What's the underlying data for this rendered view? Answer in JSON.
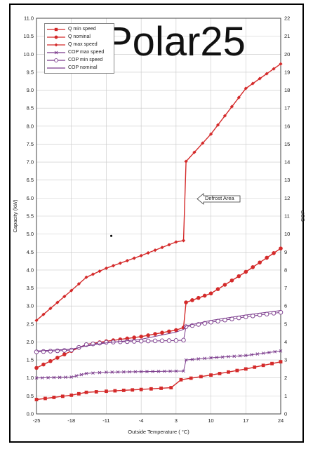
{
  "brand_text": "Polar25",
  "chart_data": {
    "type": "line",
    "x_axis": {
      "label": "Outside Temperature ( °C)",
      "ticks": [
        -25,
        -18,
        -11,
        -4,
        3,
        10,
        17,
        24
      ],
      "range": [
        -25,
        24
      ]
    },
    "y_axis_left": {
      "label": "Capacity (kW)",
      "range": [
        0,
        11
      ],
      "step": 0.5,
      "ticks": [
        "0.0",
        "0.5",
        "1.0",
        "1.5",
        "2.0",
        "2.5",
        "3.0",
        "3.5",
        "4.0",
        "4.5",
        "5.0",
        "5.5",
        "6.0",
        "6.5",
        "7.0",
        "7.5",
        "8.0",
        "8.5",
        "9.0",
        "9.5",
        "10.0",
        "10.5",
        "11.0"
      ]
    },
    "y_axis_right": {
      "label": "COP",
      "range": [
        0,
        22
      ],
      "step": 1,
      "ticks": [
        "0",
        "1",
        "2",
        "3",
        "4",
        "5",
        "6",
        "7",
        "8",
        "9",
        "10",
        "11",
        "12",
        "13",
        "14",
        "15",
        "16",
        "17",
        "18",
        "19",
        "20",
        "21",
        "22"
      ]
    },
    "grid": true,
    "legend_position": "top-left",
    "series": [
      {
        "name": "Q min speed",
        "axis": "left",
        "color": "#d42a2a",
        "marker": "square",
        "points": [
          [
            -25,
            0.4
          ],
          [
            -18,
            0.52
          ],
          [
            -15,
            0.6
          ],
          [
            -11,
            0.63
          ],
          [
            -4,
            0.68
          ],
          [
            2,
            0.73
          ],
          [
            4,
            0.95
          ],
          [
            10,
            1.08
          ],
          [
            17,
            1.25
          ],
          [
            24,
            1.45
          ]
        ]
      },
      {
        "name": "Q nominal",
        "axis": "left",
        "color": "#d42a2a",
        "marker": "circle",
        "points": [
          [
            -25,
            1.28
          ],
          [
            -18,
            1.75
          ],
          [
            -15,
            1.93
          ],
          [
            -11,
            2.02
          ],
          [
            -4,
            2.15
          ],
          [
            3,
            2.33
          ],
          [
            4.5,
            2.4
          ],
          [
            5,
            3.1
          ],
          [
            10,
            3.35
          ],
          [
            17,
            3.95
          ],
          [
            24,
            4.6
          ]
        ]
      },
      {
        "name": "Q max speed",
        "axis": "left",
        "color": "#d42a2a",
        "marker": "diamond",
        "points": [
          [
            -25,
            2.6
          ],
          [
            -18,
            3.43
          ],
          [
            -15,
            3.8
          ],
          [
            -11,
            4.05
          ],
          [
            -4,
            4.4
          ],
          [
            3,
            4.78
          ],
          [
            4.5,
            4.82
          ],
          [
            5,
            7.02
          ],
          [
            10,
            7.78
          ],
          [
            17,
            9.05
          ],
          [
            24,
            9.73
          ]
        ]
      },
      {
        "name": "COP max speed",
        "axis": "right",
        "color": "#7b3b8c",
        "marker": "x",
        "points": [
          [
            -25,
            2
          ],
          [
            -18,
            2.05
          ],
          [
            -15,
            2.25
          ],
          [
            -11,
            2.32
          ],
          [
            -4,
            2.35
          ],
          [
            3,
            2.38
          ],
          [
            4.5,
            2.38
          ],
          [
            5,
            3.0
          ],
          [
            10,
            3.12
          ],
          [
            17,
            3.25
          ],
          [
            24,
            3.5
          ]
        ]
      },
      {
        "name": "COP min speed",
        "axis": "right",
        "color": "#7b3b8c",
        "marker": "circle-open",
        "points": [
          [
            -25,
            3.45
          ],
          [
            -18,
            3.55
          ],
          [
            -15,
            3.85
          ],
          [
            -11,
            3.98
          ],
          [
            -4,
            4.05
          ],
          [
            3,
            4.08
          ],
          [
            4.5,
            4.1
          ],
          [
            5,
            4.85
          ],
          [
            10,
            5.1
          ],
          [
            17,
            5.4
          ],
          [
            24,
            5.65
          ]
        ]
      },
      {
        "name": "COP nominal",
        "axis": "right",
        "color": "#7b3b8c",
        "marker": "none",
        "points": [
          [
            -25,
            3.5
          ],
          [
            -18,
            3.6
          ],
          [
            -15,
            3.78
          ],
          [
            -11,
            3.95
          ],
          [
            -4,
            4.15
          ],
          [
            3,
            4.55
          ],
          [
            4.5,
            4.7
          ],
          [
            5,
            4.9
          ],
          [
            10,
            5.2
          ],
          [
            17,
            5.5
          ],
          [
            24,
            5.75
          ]
        ]
      }
    ],
    "annotations": [
      {
        "text": "Defrost Area"
      }
    ]
  }
}
